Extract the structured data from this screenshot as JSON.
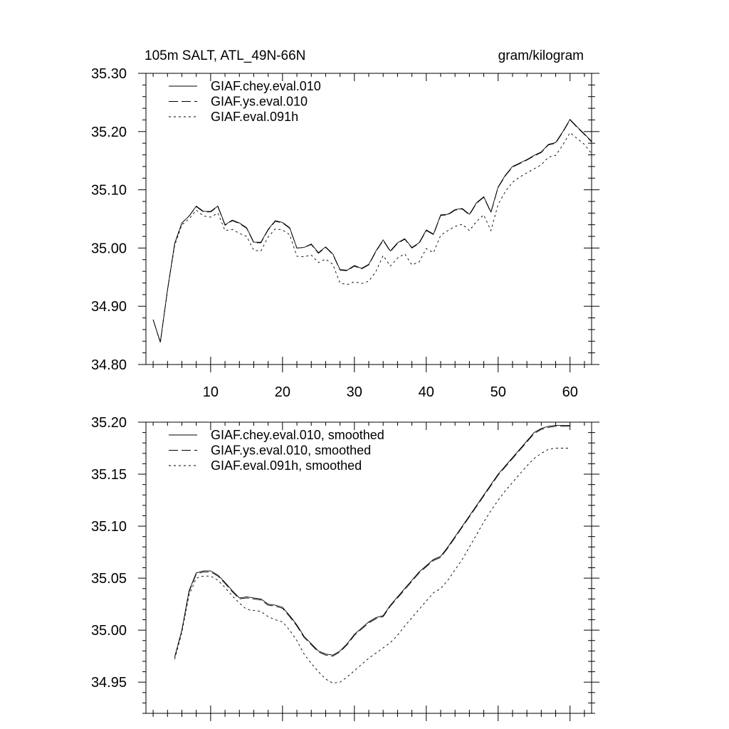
{
  "chart_data": [
    {
      "type": "line",
      "title": "105m SALT, ATL_49N-66N",
      "units": "gram/kilogram",
      "xlabel": "",
      "ylabel": "",
      "xlim": [
        1,
        63
      ],
      "ylim": [
        34.8,
        35.3
      ],
      "xticks": [
        "10",
        "20",
        "30",
        "40",
        "50",
        "60"
      ],
      "yticks": [
        "34.80",
        "34.90",
        "35.00",
        "35.10",
        "35.20",
        "35.30"
      ],
      "legend_position": "top-left",
      "grid": false,
      "x": [
        2,
        3,
        4,
        5,
        6,
        7,
        8,
        9,
        10,
        11,
        12,
        13,
        14,
        15,
        16,
        17,
        18,
        19,
        20,
        21,
        22,
        23,
        24,
        25,
        26,
        27,
        28,
        29,
        30,
        31,
        32,
        33,
        34,
        35,
        36,
        37,
        38,
        39,
        40,
        41,
        42,
        43,
        44,
        45,
        46,
        47,
        48,
        49,
        50,
        51,
        52,
        53,
        54,
        55,
        56,
        57,
        58,
        59,
        60,
        61,
        62,
        63
      ],
      "series": [
        {
          "name": "GIAF.chey.eval.010",
          "dash": "solid",
          "values": [
            34.877,
            34.838,
            34.928,
            35.008,
            35.043,
            35.055,
            35.072,
            35.063,
            35.063,
            35.072,
            35.04,
            35.048,
            35.043,
            35.035,
            35.01,
            35.01,
            35.032,
            35.047,
            35.044,
            35.035,
            35.0,
            35.001,
            35.007,
            34.992,
            35.002,
            34.99,
            34.963,
            34.962,
            34.97,
            34.965,
            34.972,
            34.995,
            35.014,
            34.995,
            35.009,
            35.016,
            35.001,
            35.009,
            35.031,
            35.024,
            35.057,
            35.058,
            35.066,
            35.068,
            35.058,
            35.078,
            35.088,
            35.062,
            35.105,
            35.125,
            35.14,
            35.146,
            35.152,
            35.159,
            35.165,
            35.178,
            35.181,
            35.2,
            35.221,
            35.208,
            35.196,
            35.183
          ]
        },
        {
          "name": "GIAF.ys.eval.010",
          "dash": "long-dash",
          "values": [
            34.877,
            34.838,
            34.928,
            35.008,
            35.043,
            35.055,
            35.071,
            35.062,
            35.062,
            35.071,
            35.039,
            35.047,
            35.042,
            35.034,
            35.009,
            35.009,
            35.031,
            35.046,
            35.043,
            35.034,
            35.0,
            35.001,
            35.006,
            34.991,
            35.001,
            34.989,
            34.962,
            34.961,
            34.969,
            34.964,
            34.971,
            34.994,
            35.013,
            34.994,
            35.008,
            35.015,
            35.0,
            35.008,
            35.03,
            35.023,
            35.056,
            35.057,
            35.065,
            35.067,
            35.057,
            35.077,
            35.087,
            35.061,
            35.104,
            35.124,
            35.139,
            35.145,
            35.151,
            35.158,
            35.164,
            35.177,
            35.18,
            35.199,
            35.22,
            35.207,
            35.195,
            35.182
          ]
        },
        {
          "name": "GIAF.eval.091h",
          "dash": "dot",
          "values": [
            34.877,
            34.838,
            34.928,
            35.005,
            35.04,
            35.05,
            35.065,
            35.055,
            35.053,
            35.06,
            35.03,
            35.032,
            35.025,
            35.02,
            34.996,
            34.995,
            35.019,
            35.033,
            35.031,
            35.023,
            34.986,
            34.985,
            34.988,
            34.975,
            34.981,
            34.972,
            34.94,
            34.937,
            34.942,
            34.939,
            34.943,
            34.96,
            34.987,
            34.969,
            34.983,
            34.99,
            34.971,
            34.976,
            34.999,
            34.992,
            35.022,
            35.03,
            35.037,
            35.041,
            35.03,
            35.046,
            35.057,
            35.03,
            35.075,
            35.097,
            35.113,
            35.122,
            35.129,
            35.136,
            35.143,
            35.156,
            35.159,
            35.177,
            35.198,
            35.188,
            35.178,
            35.162
          ]
        }
      ]
    },
    {
      "type": "line",
      "title": "",
      "xlabel": "",
      "ylabel": "",
      "xlim": [
        1,
        63
      ],
      "ylim": [
        34.92,
        35.2
      ],
      "xticks": [],
      "yticks": [
        "34.95",
        "35.00",
        "35.05",
        "35.10",
        "35.15",
        "35.20"
      ],
      "legend_position": "top-left",
      "grid": false,
      "x": [
        5,
        6,
        7,
        8,
        9,
        10,
        11,
        12,
        13,
        14,
        15,
        16,
        17,
        18,
        19,
        20,
        21,
        22,
        23,
        24,
        25,
        26,
        27,
        28,
        29,
        30,
        31,
        32,
        33,
        34,
        35,
        36,
        37,
        38,
        39,
        40,
        41,
        42,
        43,
        44,
        45,
        46,
        47,
        48,
        49,
        50,
        51,
        52,
        53,
        54,
        55,
        56,
        57,
        58,
        59,
        60
      ],
      "series": [
        {
          "name": "GIAF.chey.eval.010, smoothed",
          "dash": "solid",
          "values": [
            34.974,
            35.0,
            35.038,
            35.055,
            35.057,
            35.057,
            35.053,
            35.046,
            35.038,
            35.031,
            35.032,
            35.031,
            35.03,
            35.025,
            35.024,
            35.022,
            35.014,
            35.005,
            34.994,
            34.987,
            34.98,
            34.977,
            34.976,
            34.98,
            34.987,
            34.996,
            35.002,
            35.008,
            35.012,
            35.014,
            35.024,
            35.032,
            35.04,
            35.048,
            35.056,
            35.062,
            35.068,
            35.071,
            35.08,
            35.09,
            35.1,
            35.11,
            35.12,
            35.13,
            35.14,
            35.15,
            35.158,
            35.166,
            35.174,
            35.182,
            35.19,
            35.194,
            35.196,
            35.197,
            35.197,
            35.197
          ]
        },
        {
          "name": "GIAF.ys.eval.010, smoothed",
          "dash": "long-dash",
          "values": [
            34.974,
            35.0,
            35.037,
            35.054,
            35.056,
            35.056,
            35.052,
            35.045,
            35.037,
            35.03,
            35.031,
            35.03,
            35.029,
            35.024,
            35.023,
            35.021,
            35.013,
            35.004,
            34.993,
            34.986,
            34.979,
            34.976,
            34.975,
            34.979,
            34.986,
            34.995,
            35.001,
            35.007,
            35.011,
            35.013,
            35.023,
            35.031,
            35.039,
            35.047,
            35.055,
            35.061,
            35.067,
            35.07,
            35.079,
            35.089,
            35.099,
            35.109,
            35.119,
            35.129,
            35.139,
            35.149,
            35.157,
            35.165,
            35.173,
            35.181,
            35.189,
            35.193,
            35.195,
            35.196,
            35.196,
            35.196
          ]
        },
        {
          "name": "GIAF.eval.091h, smoothed",
          "dash": "dot",
          "values": [
            34.972,
            34.998,
            35.034,
            35.05,
            35.052,
            35.052,
            35.048,
            35.041,
            35.033,
            35.026,
            35.02,
            35.019,
            35.018,
            35.013,
            35.01,
            35.008,
            35.0,
            34.99,
            34.977,
            34.968,
            34.96,
            34.953,
            34.949,
            34.95,
            34.955,
            34.961,
            34.967,
            34.973,
            34.978,
            34.983,
            34.988,
            34.995,
            35.004,
            35.012,
            35.02,
            35.028,
            35.036,
            35.04,
            35.048,
            35.058,
            35.068,
            35.08,
            35.092,
            35.104,
            35.115,
            35.125,
            35.134,
            35.142,
            35.15,
            35.158,
            35.165,
            35.17,
            35.174,
            35.175,
            35.175,
            35.175
          ]
        }
      ]
    }
  ]
}
